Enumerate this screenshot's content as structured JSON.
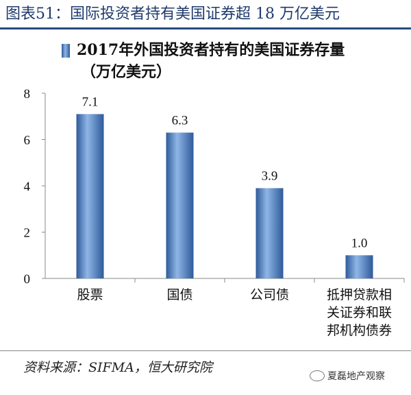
{
  "figure": {
    "title": "图表51：国际投资者持有美国证券超 18 万亿美元",
    "source": "资料来源：SIFMA，恒大研究院",
    "watermark": "夏磊地产观察"
  },
  "colors": {
    "title": "#1f3a6b",
    "bar_dark": "#2e5a9a",
    "bar_light": "#8fb6e6"
  },
  "chart_data": {
    "type": "bar",
    "title": "2017年外国投资者持有的美国证券存量",
    "ylabel": "（万亿美元）",
    "legend_label": "2017年外国投资者持有的美国证券存量",
    "legend_placement": "top-left",
    "grid": false,
    "categories": [
      [
        "股票"
      ],
      [
        "国债"
      ],
      [
        "公司债"
      ],
      [
        "抵押贷款相",
        "关证券和联",
        "邦机构债券"
      ]
    ],
    "values": [
      7.1,
      6.3,
      3.9,
      1.0
    ],
    "value_labels": [
      "7.1",
      "6.3",
      "3.9",
      "1.0"
    ],
    "ylim": [
      0,
      8
    ],
    "yticks": [
      0,
      2,
      4,
      6,
      8
    ]
  }
}
